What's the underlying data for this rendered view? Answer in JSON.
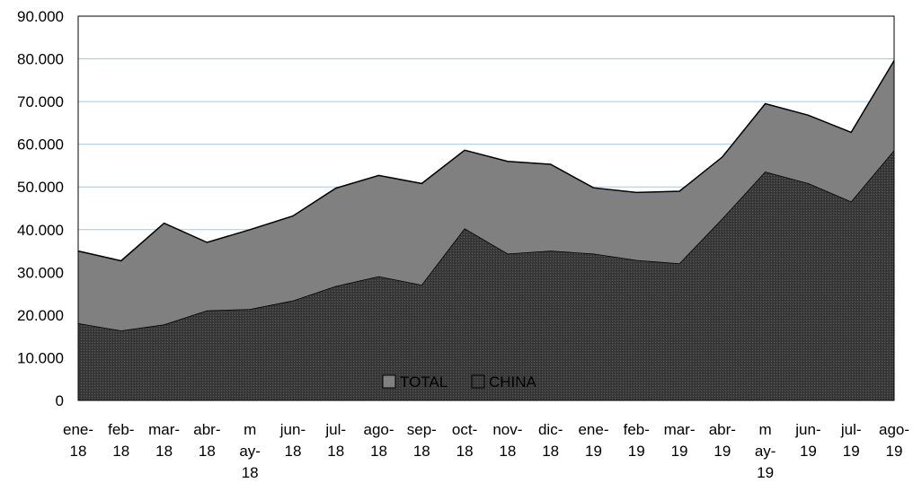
{
  "chart_data": {
    "type": "area",
    "title": "",
    "xlabel": "",
    "ylabel": "",
    "ylim": [
      0,
      90000
    ],
    "yticks": [
      0,
      10000,
      20000,
      30000,
      40000,
      50000,
      60000,
      70000,
      80000,
      90000
    ],
    "ytick_labels": [
      "0",
      "10.000",
      "20.000",
      "30.000",
      "40.000",
      "50.000",
      "60.000",
      "70.000",
      "80.000",
      "90.000"
    ],
    "grid": true,
    "legend_position": "bottom-center (inside plot)",
    "categories": [
      [
        "ene-",
        "18"
      ],
      [
        "feb-",
        "18"
      ],
      [
        "mar-",
        "18"
      ],
      [
        "abr-",
        "18"
      ],
      [
        "m",
        "ay-",
        "18"
      ],
      [
        "jun-",
        "18"
      ],
      [
        "jul-",
        "18"
      ],
      [
        "ago-",
        "18"
      ],
      [
        "sep-",
        "18"
      ],
      [
        "oct-",
        "18"
      ],
      [
        "nov-",
        "18"
      ],
      [
        "dic-",
        "18"
      ],
      [
        "ene-",
        "19"
      ],
      [
        "feb-",
        "19"
      ],
      [
        "mar-",
        "19"
      ],
      [
        "abr-",
        "19"
      ],
      [
        "m",
        "ay-",
        "19"
      ],
      [
        "jun-",
        "19"
      ],
      [
        "jul-",
        "19"
      ],
      [
        "ago-",
        "19"
      ]
    ],
    "series": [
      {
        "name": "TOTAL",
        "color": "#808080",
        "values": [
          35000,
          32700,
          41500,
          37000,
          40000,
          43200,
          49700,
          52700,
          50800,
          58600,
          56000,
          55300,
          49800,
          48700,
          49000,
          57000,
          69500,
          66800,
          62800,
          79600
        ]
      },
      {
        "name": "CHINA",
        "color": "#3c3c3c",
        "values": [
          18000,
          16300,
          17700,
          21000,
          21300,
          23300,
          26700,
          29000,
          27000,
          40200,
          34300,
          35000,
          34300,
          32800,
          32000,
          42500,
          53500,
          50800,
          46500,
          58500
        ]
      }
    ]
  }
}
